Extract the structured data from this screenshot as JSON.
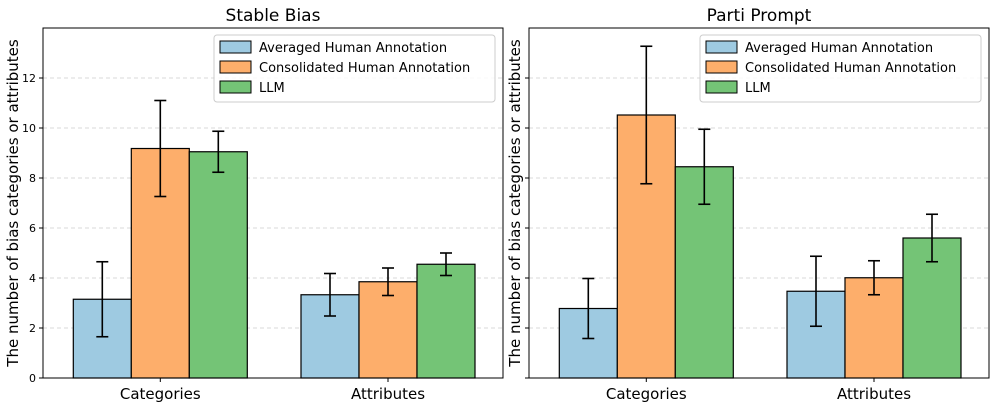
{
  "chart_data": [
    {
      "type": "bar",
      "title": "Stable Bias",
      "ylabel": "The number of bias categories or attributes",
      "xlabel": "",
      "categories": [
        "Categories",
        "Attributes"
      ],
      "ylim": [
        0,
        14
      ],
      "yticks": [
        0,
        2,
        4,
        6,
        8,
        10,
        12
      ],
      "grid": true,
      "legend_position": "top-right",
      "series": [
        {
          "name": "Averaged Human Annotation",
          "color": "#9ecae1",
          "values": [
            3.15,
            3.33
          ],
          "errors": [
            1.5,
            0.85
          ]
        },
        {
          "name": "Consolidated Human Annotation",
          "color": "#fdae6b",
          "values": [
            9.18,
            3.85
          ],
          "errors": [
            1.92,
            0.55
          ]
        },
        {
          "name": "LLM",
          "color": "#74c476",
          "values": [
            9.05,
            4.55
          ],
          "errors": [
            0.82,
            0.45
          ]
        }
      ]
    },
    {
      "type": "bar",
      "title": "Parti Prompt",
      "ylabel": "The number of bias categories or attributes",
      "xlabel": "",
      "categories": [
        "Categories",
        "Attributes"
      ],
      "ylim": [
        0,
        14
      ],
      "yticks": [
        0,
        2,
        4,
        6,
        8,
        10,
        12
      ],
      "grid": true,
      "legend_position": "top-right",
      "series": [
        {
          "name": "Averaged Human Annotation",
          "color": "#9ecae1",
          "values": [
            2.78,
            3.47
          ],
          "errors": [
            1.2,
            1.4
          ]
        },
        {
          "name": "Consolidated Human Annotation",
          "color": "#fdae6b",
          "values": [
            10.52,
            4.01
          ],
          "errors": [
            2.75,
            0.68
          ]
        },
        {
          "name": "LLM",
          "color": "#74c476",
          "values": [
            8.45,
            5.6
          ],
          "errors": [
            1.5,
            0.95
          ]
        }
      ]
    }
  ]
}
